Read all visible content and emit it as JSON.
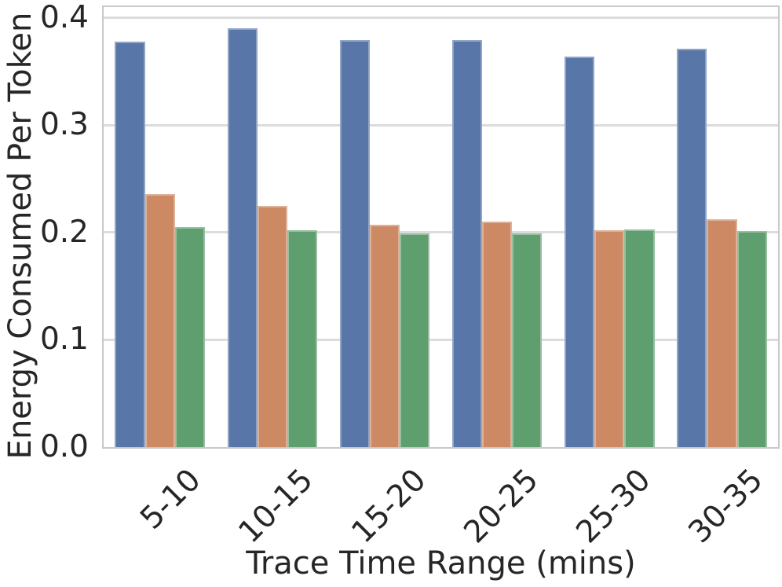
{
  "chart_data": {
    "type": "bar",
    "title": "",
    "xlabel": "Trace Time Range (mins)",
    "ylabel": "Energy Consumed Per Token",
    "categories": [
      "5-10",
      "10-15",
      "15-20",
      "20-25",
      "25-30",
      "30-35"
    ],
    "series": [
      {
        "name": "series-blue",
        "color": "#5876A7",
        "values": [
          0.378,
          0.39,
          0.379,
          0.379,
          0.364,
          0.371
        ]
      },
      {
        "name": "series-orange",
        "color": "#CC8963",
        "values": [
          0.236,
          0.225,
          0.207,
          0.21,
          0.202,
          0.212
        ]
      },
      {
        "name": "series-green",
        "color": "#5F9E6E",
        "values": [
          0.205,
          0.202,
          0.199,
          0.199,
          0.203,
          0.201
        ]
      }
    ],
    "ylim": [
      0,
      0.41
    ],
    "yticks": [
      0,
      0.1,
      0.2,
      0.3,
      0.4
    ],
    "ytick_labels": [
      "0.0",
      "0.1",
      "0.2",
      "0.3",
      "0.4"
    ],
    "bar_group_width_fraction": 0.8,
    "grid": true,
    "legend": false
  },
  "style": {
    "grid_color": "#dcdcdc",
    "spine_color": "#c9c9c9",
    "text_color": "#262626",
    "background": "#ffffff"
  }
}
